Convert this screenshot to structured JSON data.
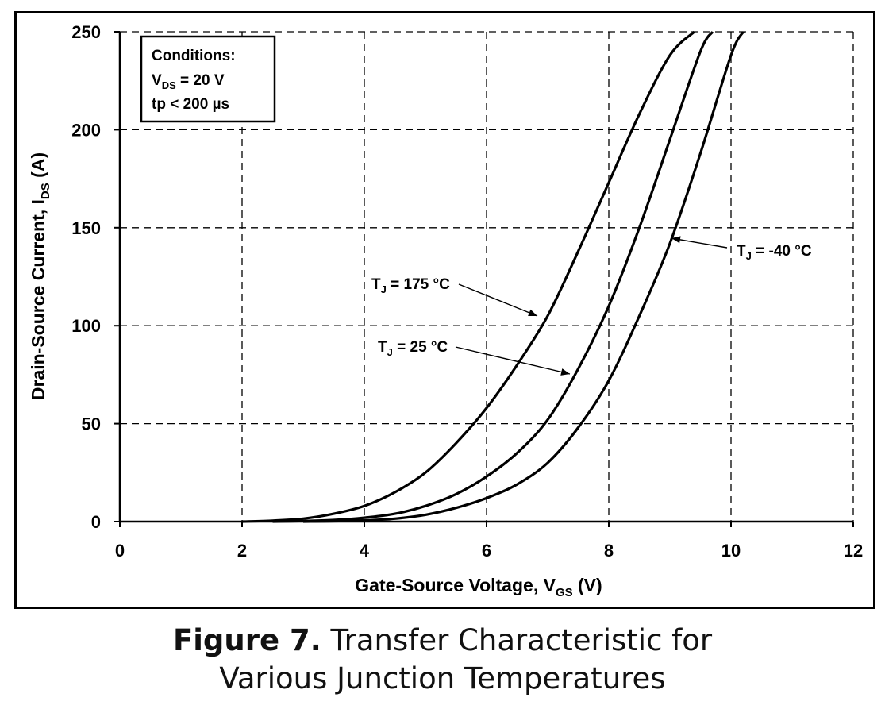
{
  "chart_data": {
    "type": "line",
    "xlabel": "Gate-Source Voltage, V",
    "xlabel_sub": "GS",
    "xlabel_unit": "(V)",
    "ylabel": "Drain-Source Current, I",
    "ylabel_sub": "DS",
    "ylabel_unit": "(A)",
    "xlim": [
      0,
      12
    ],
    "ylim": [
      0,
      250
    ],
    "xticks": [
      "0",
      "2",
      "4",
      "6",
      "8",
      "10",
      "12"
    ],
    "yticks": [
      "0",
      "50",
      "100",
      "150",
      "200",
      "250"
    ],
    "grid": "dashed",
    "series": [
      {
        "name": "T_J = 175 °C",
        "x": [
          2.0,
          2.5,
          3.0,
          3.5,
          4.0,
          4.5,
          5.0,
          5.5,
          6.0,
          6.5,
          7.0,
          7.5,
          8.0,
          8.5,
          9.0,
          9.4
        ],
        "y": [
          0,
          0.5,
          1.5,
          4,
          8,
          15,
          25,
          40,
          58,
          80,
          105,
          138,
          173,
          208,
          238,
          250
        ]
      },
      {
        "name": "T_J = 25 °C",
        "x": [
          2.5,
          3.0,
          3.5,
          4.0,
          4.5,
          5.0,
          5.5,
          6.0,
          6.5,
          7.0,
          7.5,
          8.0,
          8.5,
          9.0,
          9.5,
          9.7
        ],
        "y": [
          0,
          0.3,
          0.8,
          2,
          4,
          8,
          14,
          23,
          35,
          52,
          78,
          110,
          150,
          195,
          240,
          250
        ]
      },
      {
        "name": "T_J = -40 °C",
        "x": [
          3.0,
          3.5,
          4.0,
          4.5,
          5.0,
          5.5,
          6.0,
          6.5,
          7.0,
          7.5,
          8.0,
          8.5,
          9.0,
          9.5,
          10.0,
          10.2
        ],
        "y": [
          0,
          0.2,
          0.6,
          1.5,
          3.5,
          7,
          12,
          19,
          30,
          48,
          72,
          105,
          142,
          188,
          238,
          250
        ]
      }
    ],
    "annotations": [
      {
        "sym": "T",
        "sub": "J",
        "text": " = 175 °C",
        "series": 0
      },
      {
        "sym": "T",
        "sub": "J",
        "text": " = 25 °C",
        "series": 1
      },
      {
        "sym": "T",
        "sub": "J",
        "text": " = -40 °C",
        "series": 2
      }
    ],
    "conditions": {
      "title": "Conditions:",
      "line1_sym": "V",
      "line1_sub": "DS",
      "line1_text": " = 20 V",
      "line2": "tp < 200 µs"
    }
  },
  "caption": {
    "figure_label": "Figure 7.",
    "line1": " Transfer Characteristic for",
    "line2": "Various Junction Temperatures"
  }
}
